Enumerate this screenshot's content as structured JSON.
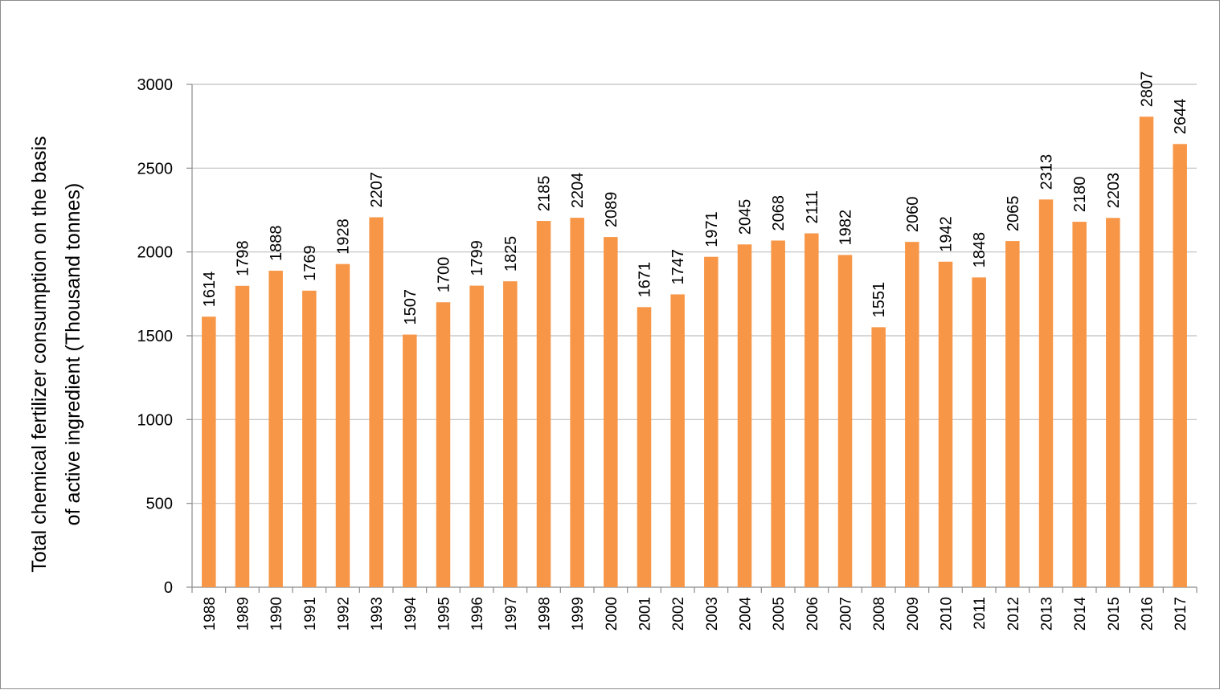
{
  "chart_data": {
    "type": "bar",
    "title": "",
    "xlabel": "",
    "ylabel_lines": [
      "Total chemical fertilizer consumption on the basis",
      "of active ingredient  (Thousand tonnes)"
    ],
    "ylim": [
      0,
      3000
    ],
    "yticks": [
      0,
      500,
      1000,
      1500,
      2000,
      2500,
      3000
    ],
    "grid": true,
    "legend": "none",
    "bar_color": "#F79646",
    "categories": [
      "1988",
      "1989",
      "1990",
      "1991",
      "1992",
      "1993",
      "1994",
      "1995",
      "1996",
      "1997",
      "1998",
      "1999",
      "2000",
      "2001",
      "2002",
      "2003",
      "2004",
      "2005",
      "2006",
      "2007",
      "2008",
      "2009",
      "2010",
      "2011",
      "2012",
      "2013",
      "2014",
      "2015",
      "2016",
      "2017"
    ],
    "values": [
      1614,
      1798,
      1888,
      1769,
      1928,
      2207,
      1507,
      1700,
      1799,
      1825,
      2185,
      2204,
      2089,
      1671,
      1747,
      1971,
      2045,
      2068,
      2111,
      1982,
      1551,
      2060,
      1942,
      1848,
      2065,
      2313,
      2180,
      2203,
      2807,
      2644
    ]
  }
}
